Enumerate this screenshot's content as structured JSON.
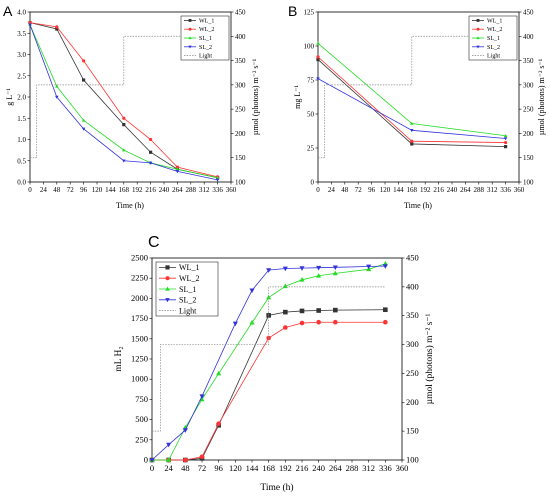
{
  "colors": {
    "WL_1": "#333333",
    "WL_2": "#ff3333",
    "SL_1": "#22dd22",
    "SL_2": "#3333dd",
    "Light": "#888888"
  },
  "chart_data": [
    {
      "panel": "A",
      "type": "line",
      "xlabel": "Time (h)",
      "ylabel": "g L⁻¹",
      "y2label": "µmol (photons) m⁻² s⁻¹",
      "xlim": [
        0,
        360
      ],
      "ylim": [
        0,
        4.0
      ],
      "y2lim": [
        100,
        450
      ],
      "xticks": [
        "0",
        "24",
        "48",
        "72",
        "96",
        "120",
        "144",
        "168",
        "192",
        "216",
        "240",
        "264",
        "288",
        "312",
        "336",
        "360"
      ],
      "yticks": [
        "0.0",
        "0.5",
        "1.0",
        "1.5",
        "2.0",
        "2.5",
        "3.0",
        "3.5",
        "4.0"
      ],
      "y2ticks": [
        "100",
        "150",
        "200",
        "250",
        "300",
        "350",
        "400",
        "450"
      ],
      "legend_position": "top-right",
      "series": [
        {
          "name": "WL_1",
          "x": [
            0,
            48,
            96,
            168,
            216,
            264,
            336
          ],
          "y": [
            3.75,
            3.6,
            2.4,
            1.35,
            0.7,
            0.3,
            0.1
          ]
        },
        {
          "name": "WL_2",
          "x": [
            0,
            48,
            96,
            168,
            216,
            264,
            336
          ],
          "y": [
            3.75,
            3.65,
            2.85,
            1.5,
            1.0,
            0.35,
            0.12
          ]
        },
        {
          "name": "SL_1",
          "x": [
            0,
            48,
            96,
            168,
            216,
            264,
            336
          ],
          "y": [
            3.7,
            2.25,
            1.45,
            0.75,
            0.45,
            0.3,
            0.1
          ]
        },
        {
          "name": "SL_2",
          "x": [
            0,
            48,
            96,
            168,
            216,
            264,
            336
          ],
          "y": [
            3.7,
            2.0,
            1.25,
            0.5,
            0.45,
            0.25,
            0.05
          ]
        },
        {
          "name": "Light",
          "x": [
            0,
            12,
            12,
            168,
            168,
            336
          ],
          "y2": [
            150,
            150,
            300,
            300,
            400,
            400
          ]
        }
      ]
    },
    {
      "panel": "B",
      "type": "line",
      "xlabel": "Time (h)",
      "ylabel": "mg L⁻¹",
      "y2label": "µmol (photons) m⁻² s⁻¹",
      "xlim": [
        0,
        360
      ],
      "ylim": [
        0,
        125
      ],
      "y2lim": [
        100,
        450
      ],
      "xticks": [
        "0",
        "24",
        "48",
        "72",
        "96",
        "120",
        "144",
        "168",
        "192",
        "216",
        "240",
        "264",
        "288",
        "312",
        "336",
        "360"
      ],
      "yticks": [
        "0",
        "25",
        "50",
        "75",
        "100",
        "125"
      ],
      "y2ticks": [
        "100",
        "150",
        "200",
        "250",
        "300",
        "350",
        "400",
        "450"
      ],
      "legend_position": "top-right",
      "series": [
        {
          "name": "WL_1",
          "x": [
            0,
            168,
            336
          ],
          "y": [
            90,
            28,
            26
          ]
        },
        {
          "name": "WL_2",
          "x": [
            0,
            168,
            336
          ],
          "y": [
            92,
            30,
            29
          ]
        },
        {
          "name": "SL_1",
          "x": [
            0,
            168,
            336
          ],
          "y": [
            102,
            43,
            34
          ]
        },
        {
          "name": "SL_2",
          "x": [
            0,
            168,
            336
          ],
          "y": [
            76,
            38,
            32
          ]
        },
        {
          "name": "Light",
          "x": [
            0,
            12,
            12,
            168,
            168,
            336
          ],
          "y2": [
            150,
            150,
            300,
            300,
            400,
            400
          ]
        }
      ]
    },
    {
      "panel": "C",
      "type": "line",
      "xlabel": "Time (h)",
      "ylabel": "mL H₂",
      "y2label": "µmol (photons) m⁻² s⁻¹",
      "xlim": [
        0,
        360
      ],
      "ylim": [
        0,
        2500
      ],
      "y2lim": [
        100,
        450
      ],
      "xticks": [
        "0",
        "24",
        "48",
        "72",
        "96",
        "120",
        "144",
        "168",
        "192",
        "216",
        "240",
        "264",
        "288",
        "312",
        "336",
        "360"
      ],
      "yticks": [
        "0",
        "250",
        "500",
        "750",
        "1000",
        "1250",
        "1500",
        "1750",
        "2000",
        "2250",
        "2500"
      ],
      "y2ticks": [
        "100",
        "150",
        "200",
        "250",
        "300",
        "350",
        "400",
        "450"
      ],
      "legend_position": "top-left",
      "series": [
        {
          "name": "WL_1",
          "x": [
            0,
            24,
            48,
            72,
            96,
            168,
            192,
            216,
            240,
            264,
            336
          ],
          "y": [
            0,
            0,
            0,
            20,
            430,
            1790,
            1830,
            1845,
            1850,
            1855,
            1860
          ]
        },
        {
          "name": "WL_2",
          "x": [
            0,
            24,
            48,
            72,
            96,
            168,
            192,
            216,
            240,
            264,
            336
          ],
          "y": [
            0,
            0,
            0,
            40,
            450,
            1510,
            1640,
            1695,
            1705,
            1705,
            1705
          ]
        },
        {
          "name": "SL_1",
          "x": [
            0,
            24,
            48,
            72,
            96,
            144,
            168,
            192,
            216,
            240,
            264,
            312,
            336
          ],
          "y": [
            0,
            0,
            400,
            750,
            1070,
            1700,
            2010,
            2150,
            2230,
            2280,
            2310,
            2360,
            2430
          ]
        },
        {
          "name": "SL_2",
          "x": [
            0,
            24,
            48,
            72,
            120,
            144,
            168,
            192,
            216,
            240,
            264,
            312,
            336
          ],
          "y": [
            0,
            190,
            370,
            790,
            1690,
            2100,
            2350,
            2370,
            2375,
            2380,
            2385,
            2395,
            2400
          ]
        },
        {
          "name": "Light",
          "x": [
            0,
            12,
            12,
            168,
            168,
            336
          ],
          "y2": [
            150,
            150,
            300,
            300,
            400,
            400
          ]
        }
      ]
    }
  ],
  "panels": [
    {
      "label": "A",
      "ylabel": "g L⁻¹",
      "y2label": "µmol (photons) m⁻² s⁻¹",
      "xlabel": "Time (h)"
    },
    {
      "label": "B",
      "ylabel": "mg L⁻¹",
      "y2label": "µmol (photons) m⁻² s⁻¹",
      "xlabel": "Time (h)"
    },
    {
      "label": "C",
      "ylabel": "mL H₂",
      "y2label": "µmol (photons) m⁻² s⁻¹",
      "xlabel": "Time (h)"
    }
  ]
}
